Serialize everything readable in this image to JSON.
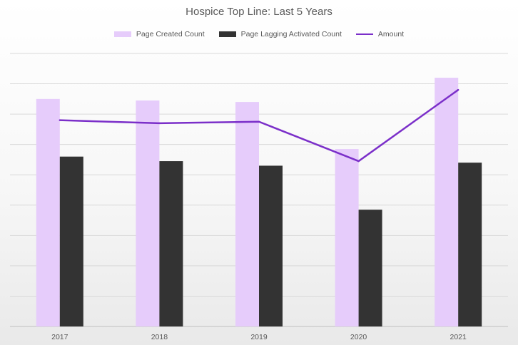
{
  "chart_data": {
    "type": "bar",
    "title": "Hospice Top Line: Last 5 Years",
    "categories": [
      "2017",
      "2018",
      "2019",
      "2020",
      "2021"
    ],
    "series": [
      {
        "name": "Page Created Count",
        "kind": "bar",
        "color": "#e6ccfb",
        "values": [
          7.5,
          7.45,
          7.4,
          5.85,
          8.2
        ]
      },
      {
        "name": "Page Lagging Activated Count",
        "kind": "bar",
        "color": "#333333",
        "values": [
          5.6,
          5.45,
          5.3,
          3.85,
          5.4
        ]
      },
      {
        "name": "Amount",
        "kind": "line",
        "color": "#7b2fc9",
        "values": [
          6.8,
          6.7,
          6.75,
          5.45,
          7.8
        ]
      }
    ],
    "ylim": [
      0,
      9
    ],
    "grid": true,
    "legend_position": "top"
  }
}
